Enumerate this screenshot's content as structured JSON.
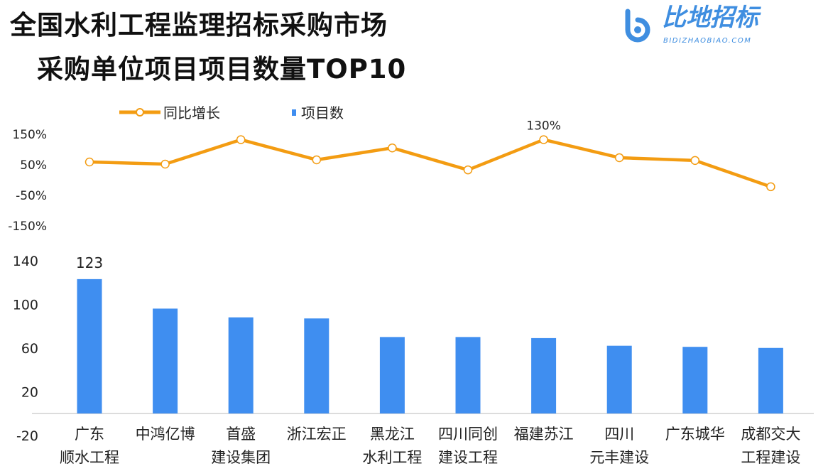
{
  "title_line1": "全国水利工程监理招标采购市场",
  "title_line2": "采购单位项目项目数量TOP10",
  "logo": {
    "name": "比地招标",
    "url": "BIDIZHAOBIAO.COM"
  },
  "chart_data": [
    {
      "type": "line",
      "series": [
        {
          "name": "同比增长",
          "values": [
            57,
            50,
            130,
            64,
            103,
            31,
            130,
            71,
            62,
            -24
          ],
          "color": "#f39c12"
        }
      ],
      "categories": [
        "广东顺水工程",
        "中鸿亿博",
        "首盛建设集团",
        "浙江宏正",
        "黑龙江水利工程",
        "四川同创建设工程",
        "福建苏江",
        "四川元丰建设",
        "广东城华",
        "成都交大工程建设"
      ],
      "ylim": [
        -150,
        150
      ],
      "yticks": [
        "150%",
        "50%",
        "-50%",
        "-150%"
      ],
      "data_labels": [
        {
          "index": 6,
          "text": "130%"
        }
      ],
      "grid": false
    },
    {
      "type": "bar",
      "series": [
        {
          "name": "项目数",
          "values": [
            123,
            96,
            88,
            87,
            70,
            70,
            69,
            62,
            61,
            60
          ],
          "color": "#3f8ef0"
        }
      ],
      "categories": [
        "广东\n顺水工程",
        "中鸿亿博",
        "首盛\n建设集团",
        "浙江宏正",
        "黑龙江\n水利工程",
        "四川同创\n建设工程",
        "福建苏江",
        "四川\n元丰建设",
        "广东城华",
        "成都交大\n工程建设"
      ],
      "ylim": [
        -20,
        140
      ],
      "yticks": [
        "140",
        "100",
        "60",
        "20",
        "-20"
      ],
      "data_labels": [
        {
          "index": 0,
          "text": "123"
        }
      ],
      "grid": false
    }
  ],
  "legend": {
    "placement": "top-left",
    "items": [
      "同比增长",
      "项目数"
    ]
  }
}
